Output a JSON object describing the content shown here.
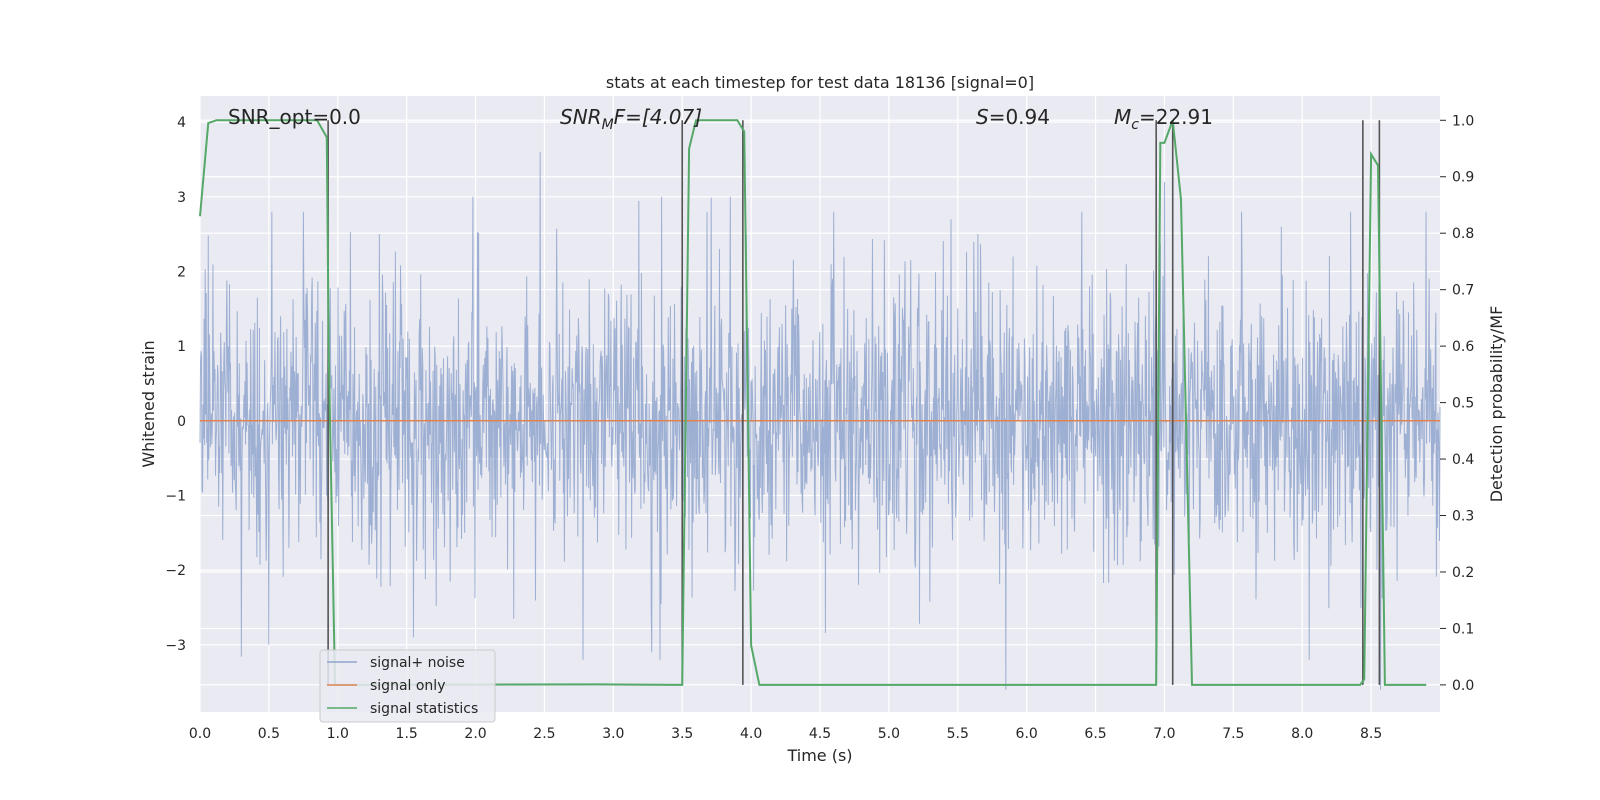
{
  "chart_data": {
    "type": "line",
    "title": "stats at each timestep for test data 18136 [signal=0]",
    "xlabel": "Time (s)",
    "ylabel_left": "Whitened strain",
    "ylabel_right": "Detection probability/MF",
    "xlim": [
      0,
      9.0
    ],
    "ylim_left": [
      -3.9,
      4.35
    ],
    "ylim_right": [
      -0.048,
      1.043
    ],
    "x_ticks": [
      "0.0",
      "0.5",
      "1.0",
      "1.5",
      "2.0",
      "2.5",
      "3.0",
      "3.5",
      "4.0",
      "4.5",
      "5.0",
      "5.5",
      "6.0",
      "6.5",
      "7.0",
      "7.5",
      "8.0",
      "8.5"
    ],
    "y_left_ticks": [
      -3,
      -2,
      -1,
      0,
      1,
      2,
      3,
      4
    ],
    "y_left_tick_labels": [
      "−3",
      "−2",
      "−1",
      "0",
      "1",
      "2",
      "3",
      "4"
    ],
    "y_right_ticks": [
      0.0,
      0.1,
      0.2,
      0.3,
      0.4,
      0.5,
      0.6,
      0.7,
      0.8,
      0.9,
      1.0
    ],
    "y_right_tick_labels": [
      "0.0",
      "0.1",
      "0.2",
      "0.3",
      "0.4",
      "0.5",
      "0.6",
      "0.7",
      "0.8",
      "0.9",
      "1.0"
    ],
    "grid": true,
    "legend_placement": "lower-left",
    "colors": {
      "noise": "#8fa5cc",
      "signal": "#dd8452",
      "stats": "#55a868",
      "vlines": "#555555",
      "background": "#eaeaf2"
    },
    "annotations": {
      "snr_opt": "SNR_opt=0.0",
      "snr_mf_main": "SNR",
      "snr_mf_sub": "M",
      "snr_mf_rest": "F=[4.07]",
      "s_italic": "S",
      "s_rest": "=0.94",
      "mc_italic": "M",
      "mc_sub": "c",
      "mc_rest": "=22.91"
    },
    "series": [
      {
        "name": "signal+ noise",
        "axis": "left",
        "description_values": "whitened noise, approx. gaussian, std ~0.9, peaks reaching about ±3.6",
        "peak_spikes": [
          [
            0.5,
            -3.0
          ],
          [
            0.52,
            2.8
          ],
          [
            0.75,
            2.8
          ],
          [
            1.3,
            2.5
          ],
          [
            1.55,
            -2.9
          ],
          [
            1.98,
            3.0
          ],
          [
            2.47,
            3.6
          ],
          [
            2.78,
            -3.2
          ],
          [
            3.28,
            -3.1
          ],
          [
            3.34,
            -3.2
          ],
          [
            3.35,
            3.0
          ],
          [
            3.68,
            2.8
          ],
          [
            3.85,
            3.0
          ],
          [
            4.6,
            2.8
          ],
          [
            5.45,
            2.7
          ],
          [
            5.85,
            -3.6
          ],
          [
            5.9,
            2.2
          ],
          [
            6.4,
            2.8
          ],
          [
            7.0,
            3.2
          ],
          [
            7.56,
            2.8
          ],
          [
            7.85,
            2.6
          ],
          [
            8.05,
            -3.2
          ],
          [
            8.35,
            2.8
          ],
          [
            8.57,
            -3.6
          ],
          [
            8.9,
            2.8
          ]
        ]
      },
      {
        "name": "signal only",
        "axis": "left",
        "x": [
          0.0,
          9.0
        ],
        "y": [
          0.0,
          0.0
        ]
      },
      {
        "name": "signal statistics",
        "axis": "right",
        "x": [
          0.0,
          0.06,
          0.12,
          0.85,
          0.92,
          0.935,
          0.98,
          1.0,
          1.05,
          2.9,
          3.5,
          3.55,
          3.6,
          3.66,
          3.9,
          3.95,
          4.0,
          4.06,
          4.1,
          6.94,
          6.97,
          7.0,
          7.06,
          7.12,
          7.2,
          7.35,
          8.42,
          8.45,
          8.5,
          8.55,
          8.6,
          8.9
        ],
        "y": [
          0.83,
          0.995,
          1.0,
          1.0,
          0.97,
          0.58,
          0.0,
          0.0,
          0.0,
          0.001,
          0.0,
          0.95,
          1.0,
          1.0,
          1.0,
          0.98,
          0.07,
          0.0,
          0.0,
          0.0,
          0.96,
          0.96,
          1.0,
          0.86,
          0.0,
          0.0,
          0.0,
          0.01,
          0.94,
          0.92,
          0.0,
          0.0
        ]
      }
    ],
    "vlines": {
      "x": [
        0.93,
        3.5,
        3.94,
        6.94,
        7.06,
        8.44,
        8.56
      ],
      "y_range_right": [
        0.0,
        1.0
      ]
    }
  }
}
